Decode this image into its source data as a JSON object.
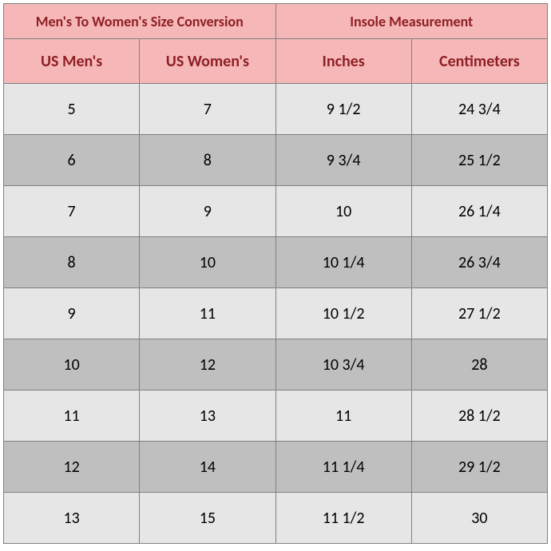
{
  "colors": {
    "header_bg": "#f6b7b8",
    "header_text": "#8e2024",
    "row_light": "#e6e6e6",
    "row_dark": "#bfbfbf",
    "body_text": "#000000",
    "border": "#808080"
  },
  "fonts": {
    "group_fontsize": 18,
    "sub_fontsize": 20,
    "cell_fontsize": 20
  },
  "headers": {
    "group_left": "Men's To Women's Size Conversion",
    "group_right": "Insole Measurement",
    "sub": [
      "US Men's",
      "US Women's",
      "Inches",
      "Centimeters"
    ]
  },
  "rows": [
    [
      "5",
      "7",
      "9 1/2",
      "24 3/4"
    ],
    [
      "6",
      "8",
      "9 3/4",
      "25 1/2"
    ],
    [
      "7",
      "9",
      "10",
      "26 1/4"
    ],
    [
      "8",
      "10",
      "10 1/4",
      "26 3/4"
    ],
    [
      "9",
      "11",
      "10 1/2",
      "27 1/2"
    ],
    [
      "10",
      "12",
      "10 3/4",
      "28"
    ],
    [
      "11",
      "13",
      "11",
      "28 1/2"
    ],
    [
      "12",
      "14",
      "11 1/4",
      "29 1/2"
    ],
    [
      "13",
      "15",
      "11 1/2",
      "30"
    ]
  ]
}
